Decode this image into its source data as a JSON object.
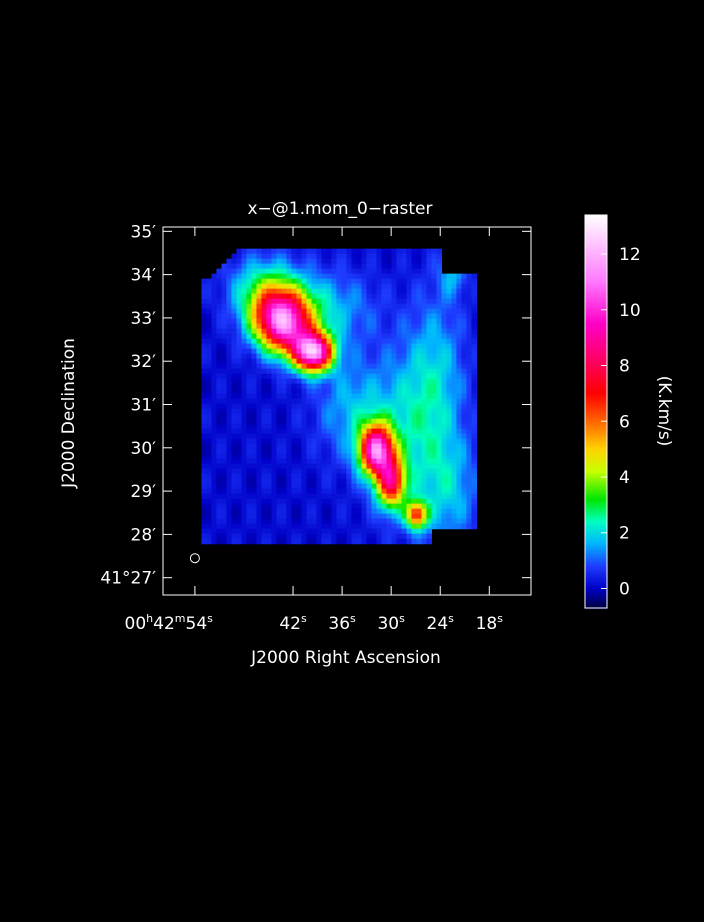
{
  "chart_data": {
    "type": "heatmap",
    "title": "x−@1.mom_0−raster",
    "xlabel": "J2000 Right Ascension",
    "ylabel": "J2000 Declination",
    "colorbar_label": "(K.km/s)",
    "colorbar_range": [
      -0.7,
      13.4
    ],
    "colorbar_ticks": [
      {
        "value": 0,
        "label": "0"
      },
      {
        "value": 2,
        "label": "2"
      },
      {
        "value": 4,
        "label": "4"
      },
      {
        "value": 6,
        "label": "6"
      },
      {
        "value": 8,
        "label": "8"
      },
      {
        "value": 10,
        "label": "10"
      },
      {
        "value": 12,
        "label": "12"
      }
    ],
    "xlim_seconds": [
      57.9,
      12.9
    ],
    "ylim_arcmin": [
      26.6,
      35.1
    ],
    "x_ticks": [
      {
        "value": 54,
        "h": "00",
        "hs": "h",
        "m": "42",
        "ms": "m",
        "s": "54",
        "ss": "s"
      },
      {
        "value": 42,
        "s": "42",
        "ss": "s"
      },
      {
        "value": 36,
        "s": "36",
        "ss": "s"
      },
      {
        "value": 30,
        "s": "30",
        "ss": "s"
      },
      {
        "value": 24,
        "s": "24",
        "ss": "s"
      },
      {
        "value": 18,
        "s": "18",
        "ss": "s"
      }
    ],
    "y_ticks": [
      {
        "value": 27,
        "label": "41°27′"
      },
      {
        "value": 28,
        "label": "28′"
      },
      {
        "value": 29,
        "label": "29′"
      },
      {
        "value": 30,
        "label": "30′"
      },
      {
        "value": 31,
        "label": "31′"
      },
      {
        "value": 32,
        "label": "32′"
      },
      {
        "value": 33,
        "label": "33′"
      },
      {
        "value": 34,
        "label": "34′"
      },
      {
        "value": 35,
        "label": "35′"
      }
    ],
    "map_extent": {
      "x_seconds": [
        53.2,
        19.9
      ],
      "y_arcmin": [
        27.85,
        34.6
      ]
    },
    "blobs": [
      {
        "x": 43.6,
        "y": 33.05,
        "amp": 8.5,
        "sx": 2.4,
        "sy": 0.45
      },
      {
        "x": 39.5,
        "y": 32.2,
        "amp": 11.0,
        "sx": 1.6,
        "sy": 0.3
      },
      {
        "x": 42.5,
        "y": 32.6,
        "amp": 4.0,
        "sx": 2.2,
        "sy": 0.4
      },
      {
        "x": 31.8,
        "y": 29.95,
        "amp": 10.0,
        "sx": 1.4,
        "sy": 0.4
      },
      {
        "x": 30.0,
        "y": 29.2,
        "amp": 7.0,
        "sx": 1.2,
        "sy": 0.4
      },
      {
        "x": 26.9,
        "y": 28.45,
        "amp": 6.0,
        "sx": 0.9,
        "sy": 0.22
      },
      {
        "x": 45.5,
        "y": 33.7,
        "amp": 2.2,
        "sx": 3.0,
        "sy": 0.5
      },
      {
        "x": 38.0,
        "y": 33.2,
        "amp": 1.6,
        "sx": 4.0,
        "sy": 0.6
      },
      {
        "x": 35.0,
        "y": 30.9,
        "amp": 1.4,
        "sx": 3.0,
        "sy": 0.8
      },
      {
        "x": 28.0,
        "y": 30.4,
        "amp": 1.7,
        "sx": 3.5,
        "sy": 1.3
      },
      {
        "x": 24.5,
        "y": 31.8,
        "amp": 1.4,
        "sx": 2.5,
        "sy": 1.3
      },
      {
        "x": 22.5,
        "y": 34.0,
        "amp": 1.3,
        "sx": 1.2,
        "sy": 0.35
      },
      {
        "x": 23.0,
        "y": 29.0,
        "amp": 1.5,
        "sx": 2.5,
        "sy": 0.9
      }
    ],
    "beam": {
      "x": 54,
      "y": 27.45
    },
    "colormap": [
      {
        "v": -0.7,
        "c": "#000040"
      },
      {
        "v": 0.0,
        "c": "#0000c8"
      },
      {
        "v": 0.8,
        "c": "#1e3cff"
      },
      {
        "v": 1.6,
        "c": "#00b4ff"
      },
      {
        "v": 2.4,
        "c": "#00ffc0"
      },
      {
        "v": 3.2,
        "c": "#00e600"
      },
      {
        "v": 4.2,
        "c": "#c8ff00"
      },
      {
        "v": 5.0,
        "c": "#ffd200"
      },
      {
        "v": 6.0,
        "c": "#ff6400"
      },
      {
        "v": 7.0,
        "c": "#ff0000"
      },
      {
        "v": 8.2,
        "c": "#ff0064"
      },
      {
        "v": 9.5,
        "c": "#ff00c8"
      },
      {
        "v": 11.0,
        "c": "#ff78ff"
      },
      {
        "v": 13.4,
        "c": "#ffffff"
      }
    ],
    "grid": false,
    "background_color": "#000000",
    "foreground_color": "#ffffff"
  }
}
